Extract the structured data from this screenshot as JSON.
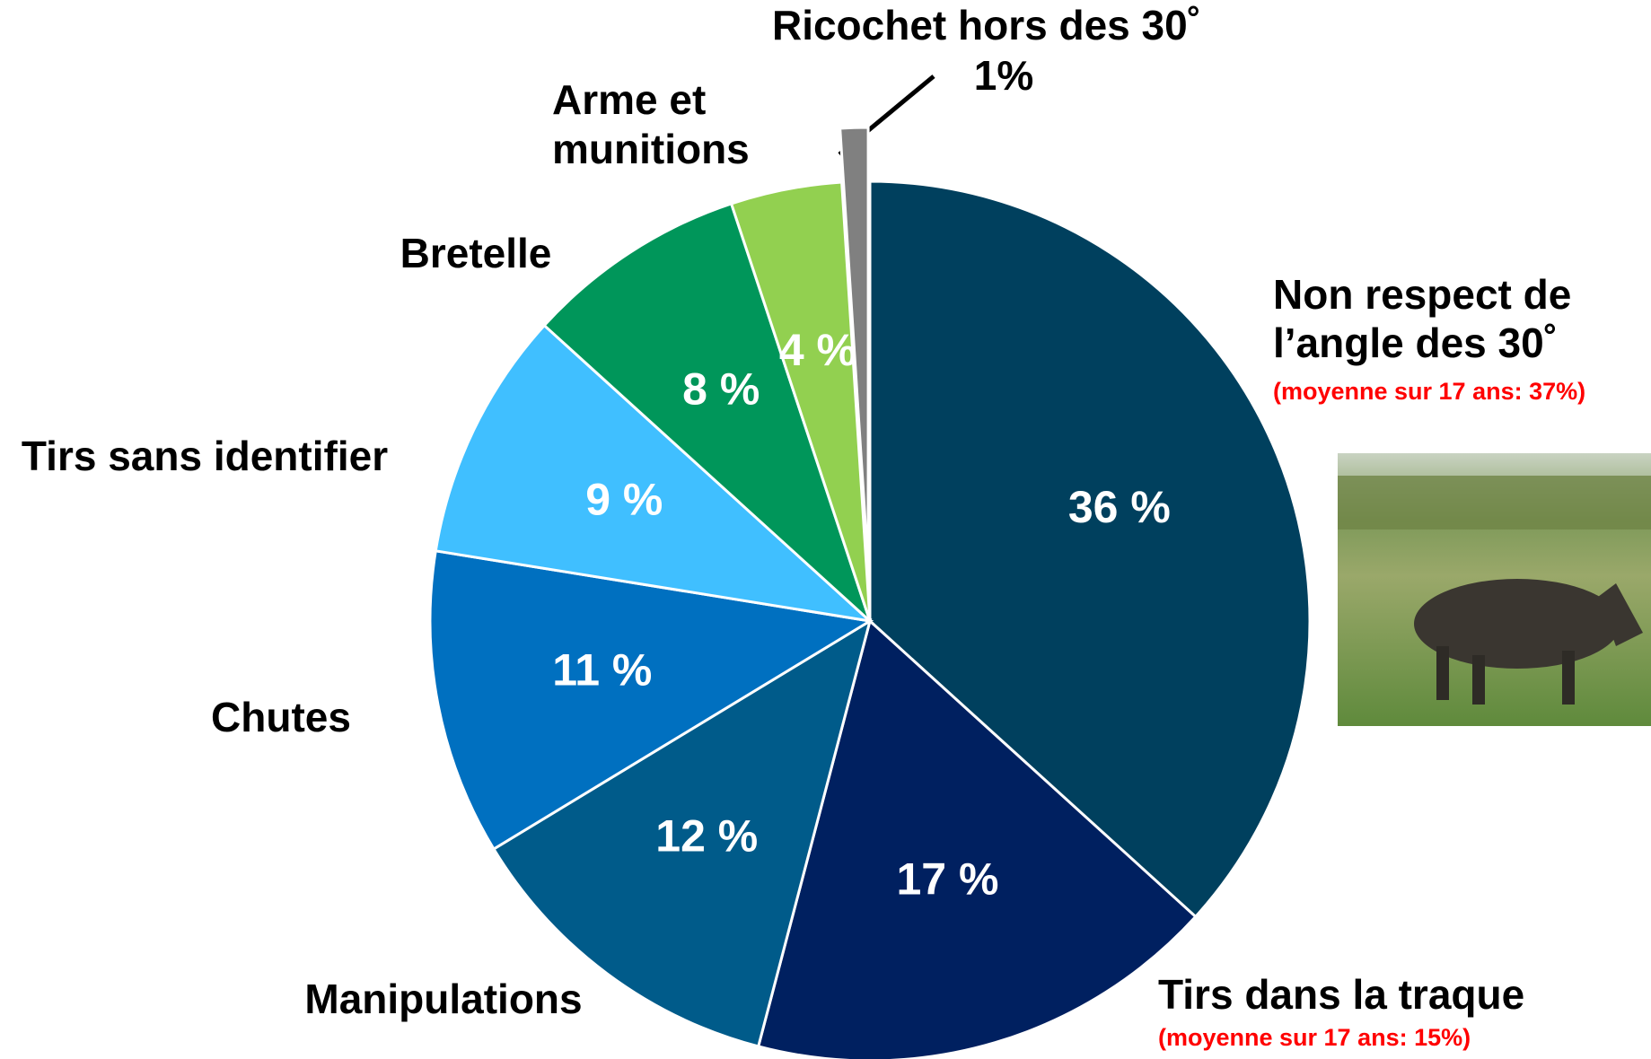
{
  "chart_data": {
    "type": "pie",
    "categories": [
      [
        "Non respect de",
        "l’angle des 30˚"
      ],
      [
        "Tirs dans la traque"
      ],
      [
        "Manipulations"
      ],
      [
        "Chutes"
      ],
      [
        "Tirs sans identifier"
      ],
      [
        "Bretelle"
      ],
      [
        "Arme et",
        "munitions"
      ],
      [
        "Ricochet hors des 30˚"
      ]
    ],
    "values": [
      36,
      17,
      12,
      11,
      9,
      8,
      4,
      1
    ],
    "value_labels": [
      "36 %",
      "17 %",
      "12 %",
      "11 %",
      "9 %",
      "8 %",
      "4 %",
      "1%"
    ],
    "notes": [
      "(moyenne sur 17 ans: 37%)",
      "(moyenne sur 17 ans: 15%)",
      null,
      null,
      null,
      null,
      null,
      null
    ],
    "colors": [
      "#00405e",
      "#002060",
      "#005b8a",
      "#0070c0",
      "#40bfff",
      "#00965a",
      "#92d050",
      "#808080"
    ],
    "exploded": [
      false,
      false,
      false,
      false,
      false,
      false,
      false,
      true
    ]
  }
}
